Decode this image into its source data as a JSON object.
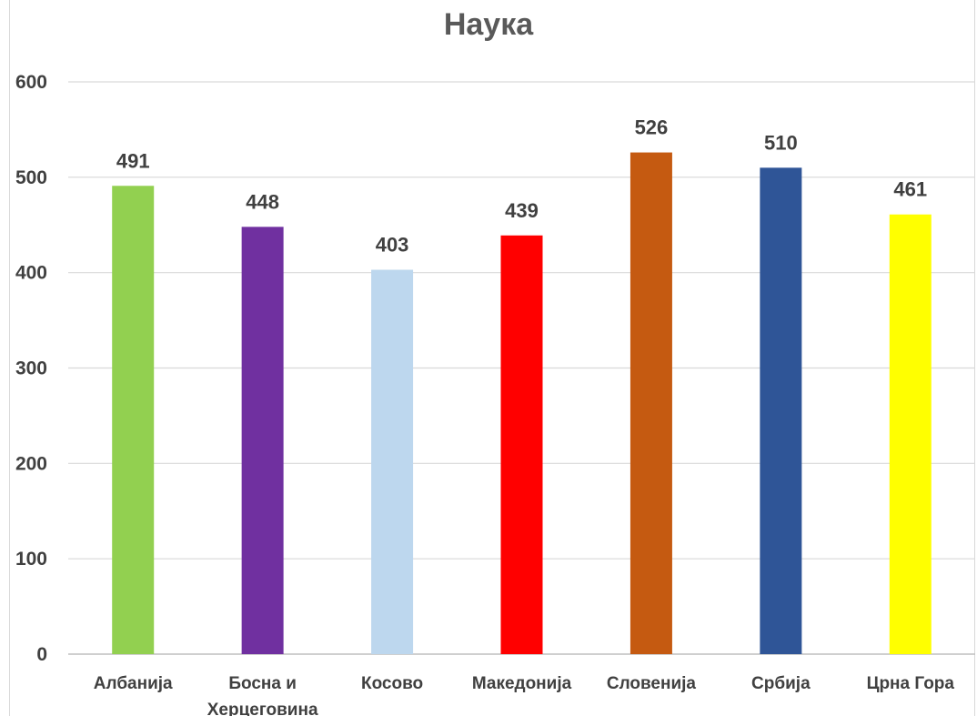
{
  "chart_data": {
    "type": "bar",
    "title": "Наука",
    "categories": [
      "Албанија",
      "Босна и Херцеговина",
      "Косово",
      "Македонија",
      "Словенија",
      "Србија",
      "Црна Гора"
    ],
    "category_lines": [
      [
        "Албанија"
      ],
      [
        "Босна и",
        "Херцеговина"
      ],
      [
        "Косово"
      ],
      [
        "Македонија"
      ],
      [
        "Словенија"
      ],
      [
        "Србија"
      ],
      [
        "Црна Гора"
      ]
    ],
    "values": [
      491,
      448,
      403,
      439,
      526,
      510,
      461
    ],
    "colors": [
      "#92d050",
      "#7030a0",
      "#bdd7ee",
      "#ff0000",
      "#c55a11",
      "#2f5597",
      "#ffff00"
    ],
    "ylim": [
      0,
      600
    ],
    "yticks": [
      0,
      100,
      200,
      300,
      400,
      500,
      600
    ],
    "grid": true,
    "xlabel": "",
    "ylabel": ""
  }
}
